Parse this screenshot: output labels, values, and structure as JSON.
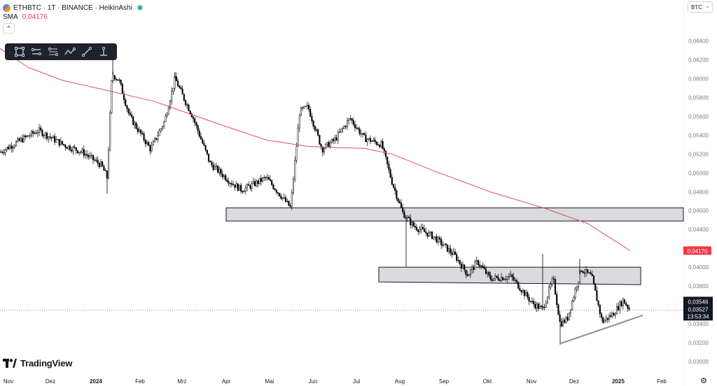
{
  "header": {
    "symbol_line": "ETHBTC · 1T · BINANCE · HeikinAshi",
    "indicator_label": "SMA",
    "indicator_value": "0,04176",
    "collapse_glyph": "^",
    "currency": "BTC"
  },
  "branding": {
    "name": "TradingView"
  },
  "toolbar": {
    "tools": [
      "rectangle-icon",
      "parallel-lines-icon",
      "fib-lines-icon",
      "path-icon",
      "trend-line-icon",
      "cursor-line-icon"
    ]
  },
  "colors": {
    "sma": "#e04f5b",
    "candle": "#000000",
    "zone_fill": "#d6d7db",
    "support_line": "#8d8f98",
    "price_label_bg": "#131722",
    "sma_label_bg": "#f23645"
  },
  "chart_data": {
    "type": "candlestick",
    "ylim": [
      0.03,
      0.065
    ],
    "y_ticks": [
      "0,06400",
      "0,06200",
      "0,06000",
      "0,05800",
      "0,05600",
      "0,05400",
      "0,05200",
      "0,05000",
      "0,04800",
      "0,04600",
      "0,04400",
      "0,04200",
      "0,04000",
      "0,03800",
      "0,03600",
      "0,03400",
      "0,03200",
      "0,03000"
    ],
    "x_ticks": [
      {
        "label": "Nov",
        "bold": false
      },
      {
        "label": "Dez",
        "bold": false
      },
      {
        "label": "2024",
        "bold": true
      },
      {
        "label": "Feb",
        "bold": false
      },
      {
        "label": "Mrz",
        "bold": false
      },
      {
        "label": "Apr",
        "bold": false
      },
      {
        "label": "Mai",
        "bold": false
      },
      {
        "label": "Jun",
        "bold": false
      },
      {
        "label": "Jul",
        "bold": false
      },
      {
        "label": "Aug",
        "bold": false
      },
      {
        "label": "Sep",
        "bold": false
      },
      {
        "label": "Okt",
        "bold": false
      },
      {
        "label": "Nov",
        "bold": false
      },
      {
        "label": "Dez",
        "bold": false
      },
      {
        "label": "2025",
        "bold": true
      },
      {
        "label": "Feb",
        "bold": false
      }
    ],
    "series_close": [
      {
        "x": "Nov",
        "y": 0.0522
      },
      {
        "x": "Nov mid",
        "y": 0.0535
      },
      {
        "x": "Dez",
        "y": 0.0545
      },
      {
        "x": "Dez mid",
        "y": 0.053
      },
      {
        "x": "Jan mid",
        "y": 0.0505
      },
      {
        "x": "Jan end",
        "y": 0.0605
      },
      {
        "x": "Feb",
        "y": 0.0545
      },
      {
        "x": "Feb mid",
        "y": 0.0525
      },
      {
        "x": "Mrz",
        "y": 0.06
      },
      {
        "x": "Mrz mid",
        "y": 0.0575
      },
      {
        "x": "Apr",
        "y": 0.05
      },
      {
        "x": "Apr mid",
        "y": 0.0482
      },
      {
        "x": "Apr end",
        "y": 0.0495
      },
      {
        "x": "Mai",
        "y": 0.0477
      },
      {
        "x": "Mai mid",
        "y": 0.0463
      },
      {
        "x": "Mai end",
        "y": 0.0565
      },
      {
        "x": "Jun",
        "y": 0.0524
      },
      {
        "x": "Jun mid",
        "y": 0.0555
      },
      {
        "x": "Jul",
        "y": 0.0532
      },
      {
        "x": "Jul end",
        "y": 0.0524
      },
      {
        "x": "Aug",
        "y": 0.0458
      },
      {
        "x": "Aug end",
        "y": 0.0434
      },
      {
        "x": "Sep",
        "y": 0.0418
      },
      {
        "x": "Sep mid",
        "y": 0.039
      },
      {
        "x": "Okt",
        "y": 0.0387
      },
      {
        "x": "Okt mid",
        "y": 0.039
      },
      {
        "x": "Nov",
        "y": 0.0348
      },
      {
        "x": "Nov mid",
        "y": 0.035
      },
      {
        "x": "Dez",
        "y": 0.0398
      },
      {
        "x": "Dez mid",
        "y": 0.0345
      },
      {
        "x": "2025",
        "y": 0.0368
      },
      {
        "x": "Jan",
        "y": 0.0355
      }
    ],
    "sma": [
      {
        "x": "Nov",
        "y": 0.0632
      },
      {
        "x": "Dez",
        "y": 0.0605
      },
      {
        "x": "2024",
        "y": 0.0589
      },
      {
        "x": "Feb",
        "y": 0.0577
      },
      {
        "x": "Mrz",
        "y": 0.0566
      },
      {
        "x": "Apr",
        "y": 0.0554
      },
      {
        "x": "Mai",
        "y": 0.054
      },
      {
        "x": "Jun",
        "y": 0.0528
      },
      {
        "x": "Jul",
        "y": 0.0526
      },
      {
        "x": "Aug",
        "y": 0.0523
      },
      {
        "x": "Sep",
        "y": 0.0502
      },
      {
        "x": "Okt",
        "y": 0.0481
      },
      {
        "x": "Nov",
        "y": 0.0461
      },
      {
        "x": "Dez",
        "y": 0.0445
      },
      {
        "x": "2025",
        "y": 0.0418
      }
    ],
    "zones": [
      {
        "name": "upper",
        "top": 0.0463,
        "bottom": 0.0449
      },
      {
        "name": "lower",
        "top": 0.04,
        "bottom": 0.0383
      }
    ],
    "support_line": {
      "from": {
        "x": "Nov",
        "y": 0.0319
      },
      "to": {
        "x": "2025",
        "y": 0.0349
      }
    },
    "current_price": "0,03546",
    "prev_close": "0,03527",
    "countdown": "13:53:34",
    "current_level": 0.03546,
    "sma_last": "0,04176",
    "sma_last_level": 0.04176
  }
}
